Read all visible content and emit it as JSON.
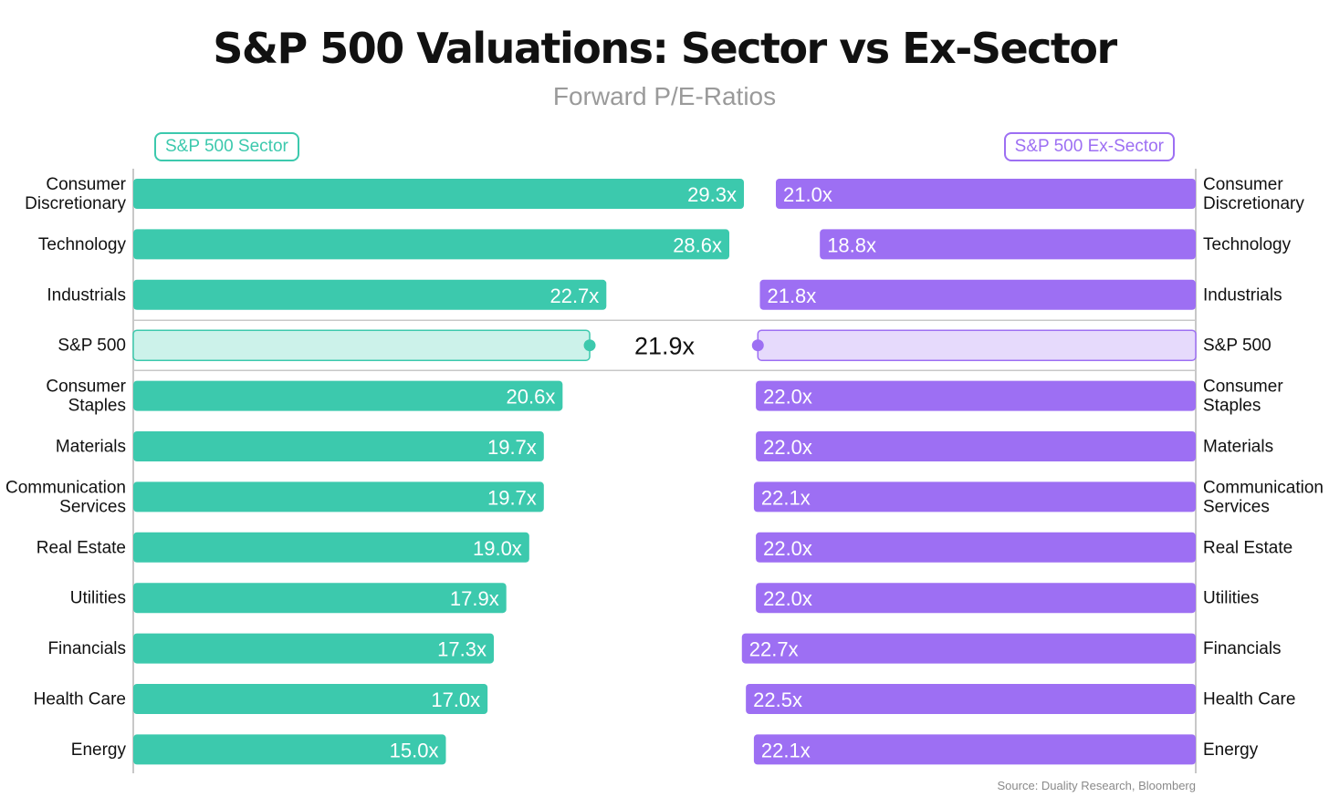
{
  "title": "S&P 500 Valuations: Sector vs Ex-Sector",
  "subtitle": "Forward P/E-Ratios",
  "source": "Source: Duality Research, Bloomberg",
  "colors": {
    "sector": "#3cc9ad",
    "sector_light": "#ccf2ea",
    "ex_sector": "#9d6ff3",
    "ex_sector_light": "#e6dafc",
    "text": "#111111",
    "axis": "#c8c8c8"
  },
  "chart_data": {
    "type": "bar",
    "title": "S&P 500 Valuations: Sector vs Ex-Sector",
    "subtitle": "Forward P/E-Ratios",
    "categories": [
      [
        "Consumer",
        "Discretionary"
      ],
      [
        "Technology"
      ],
      [
        "Industrials"
      ],
      [
        "S&P 500"
      ],
      [
        "Consumer",
        "Staples"
      ],
      [
        "Materials"
      ],
      [
        "Communication",
        "Services"
      ],
      [
        "Real Estate"
      ],
      [
        "Utilities"
      ],
      [
        "Financials"
      ],
      [
        "Health Care"
      ],
      [
        "Energy"
      ]
    ],
    "series": [
      {
        "name": "S&P 500 Sector",
        "values": [
          29.3,
          28.6,
          22.7,
          21.9,
          20.6,
          19.7,
          19.7,
          19.0,
          17.9,
          17.3,
          17.0,
          15.0
        ],
        "labels": [
          "29.3x",
          "28.6x",
          "22.7x",
          "",
          "20.6x",
          "19.7x",
          "19.7x",
          "19.0x",
          "17.9x",
          "17.3x",
          "17.0x",
          "15.0x"
        ]
      },
      {
        "name": "S&P 500 Ex-Sector",
        "values": [
          21.0,
          18.8,
          21.8,
          21.9,
          22.0,
          22.0,
          22.1,
          22.0,
          22.0,
          22.7,
          22.5,
          22.1
        ],
        "labels": [
          "21.0x",
          "18.8x",
          "21.8x",
          "",
          "22.0x",
          "22.0x",
          "22.1x",
          "22.0x",
          "22.0x",
          "22.7x",
          "22.5x",
          "22.1x"
        ]
      }
    ],
    "benchmark": {
      "category": "S&P 500",
      "value": 21.9,
      "label": "21.9x"
    },
    "legend": [
      "S&P 500 Sector",
      "S&P 500 Ex-Sector"
    ],
    "legend_position": "top",
    "grid": false
  }
}
